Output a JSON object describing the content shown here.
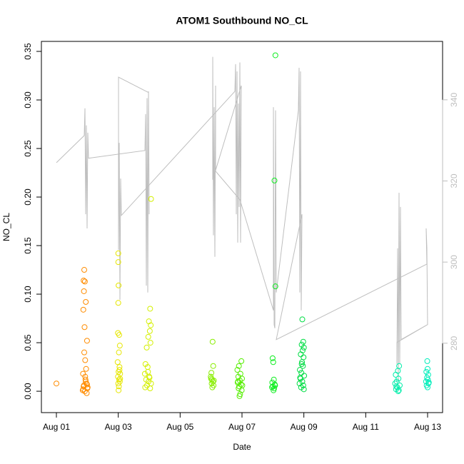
{
  "chart_data": {
    "type": "scatter",
    "title": "ATOM1 Southbound NO_CL",
    "xlabel": "Date",
    "ylabel": "NO_CL",
    "xlim": [
      0.515,
      13.485
    ],
    "xticks": [
      {
        "value": 1,
        "label": "Aug 01"
      },
      {
        "value": 3,
        "label": "Aug 03"
      },
      {
        "value": 5,
        "label": "Aug 05"
      },
      {
        "value": 7,
        "label": "Aug 07"
      },
      {
        "value": 9,
        "label": "Aug 09"
      },
      {
        "value": 11,
        "label": "Aug 11"
      },
      {
        "value": 13,
        "label": "Aug 13"
      }
    ],
    "ylim": [
      -0.022,
      0.3603
    ],
    "yticks": [
      {
        "value": 0,
        "label": "0.00"
      },
      {
        "value": 0.05,
        "label": "0.05"
      },
      {
        "value": 0.1,
        "label": "0.10"
      },
      {
        "value": 0.15,
        "label": "0.15"
      },
      {
        "value": 0.2,
        "label": "0.20"
      },
      {
        "value": 0.25,
        "label": "0.25"
      },
      {
        "value": 0.3,
        "label": "0.30"
      },
      {
        "value": 0.35,
        "label": "0.35"
      }
    ],
    "y2lim": [
      262.9,
      354.4
    ],
    "y2ticks": [
      280,
      300,
      320,
      340
    ],
    "y2_color": "#bebebe",
    "series": [
      {
        "color": "#ff8c00",
        "x": [
          1.0,
          1.9,
          1.88,
          1.92,
          1.89,
          1.95,
          1.87,
          1.91,
          1.99,
          1.9,
          1.93,
          1.96,
          1.86,
          1.94,
          1.97,
          1.88,
          2.0,
          1.85,
          1.98,
          1.92,
          2.01,
          1.89,
          1.95,
          1.93,
          1.87,
          1.99
        ],
        "values": [
          0.008,
          0.125,
          0.114,
          0.113,
          0.103,
          0.092,
          0.084,
          0.066,
          0.052,
          0.04,
          0.032,
          0.023,
          0.018,
          0.012,
          0.008,
          0.005,
          0.003,
          0.001,
          -0.002,
          0.0,
          0.004,
          0.006,
          0.01,
          0.015,
          0.002,
          0.007
        ]
      },
      {
        "color": "#e6e600",
        "x": [
          3.0,
          3.0,
          3.01,
          3.0,
          2.99,
          3.03,
          3.05,
          3.02,
          2.98,
          3.04,
          3.01,
          3.06,
          2.99,
          3.03,
          3.05,
          3.0,
          3.02,
          3.01,
          3.04,
          3.06
        ],
        "values": [
          0.142,
          0.133,
          0.109,
          0.091,
          0.06,
          0.058,
          0.047,
          0.04,
          0.03,
          0.025,
          0.02,
          0.018,
          0.015,
          0.012,
          0.01,
          0.008,
          0.005,
          0.001,
          0.022,
          0.013
        ]
      },
      {
        "color": "#d4f000",
        "x": [
          4.06,
          4.03,
          3.99,
          4.05,
          4.02,
          3.97,
          4.04,
          3.92,
          3.88,
          3.95,
          3.86,
          4.0,
          3.9,
          3.98,
          4.06,
          3.93,
          3.87,
          4.03,
          3.96,
          4.01
        ],
        "values": [
          0.198,
          0.085,
          0.072,
          0.068,
          0.062,
          0.056,
          0.05,
          0.045,
          0.028,
          0.025,
          0.018,
          0.015,
          0.012,
          0.01,
          0.008,
          0.006,
          0.004,
          0.003,
          0.02,
          0.014
        ]
      },
      {
        "color": "#88ee00",
        "x": [
          6.05,
          6.07,
          6.01,
          5.99,
          6.03,
          6.06,
          6.02,
          6.08,
          6.04,
          6.0,
          6.09
        ],
        "values": [
          0.051,
          0.026,
          0.019,
          0.015,
          0.012,
          0.01,
          0.008,
          0.006,
          0.004,
          0.013,
          0.011
        ]
      },
      {
        "color": "#55ee00",
        "x": [
          6.98,
          6.9,
          6.85,
          6.95,
          6.88,
          7.0,
          6.93,
          6.86,
          6.97,
          6.91,
          6.89,
          6.99,
          6.94,
          6.92,
          6.87,
          7.01
        ],
        "values": [
          0.031,
          0.026,
          0.022,
          0.018,
          0.015,
          0.013,
          0.011,
          0.009,
          0.007,
          0.005,
          0.003,
          0.001,
          -0.003,
          -0.005,
          0.01,
          0.006
        ]
      },
      {
        "color": "#11ee22",
        "x": [
          8.08,
          8.05,
          8.08,
          7.99,
          8.01,
          8.03,
          7.98,
          8.06,
          8.0,
          8.04,
          8.02,
          7.97,
          8.07
        ],
        "values": [
          0.346,
          0.217,
          0.108,
          0.034,
          0.03,
          0.012,
          0.009,
          0.007,
          0.005,
          0.003,
          0.001,
          0.004,
          0.006
        ]
      },
      {
        "color": "#00dd44",
        "x": [
          8.95,
          8.98,
          8.93,
          9.0,
          8.96,
          8.9,
          8.99,
          8.94,
          8.97,
          8.87,
          8.92,
          9.01,
          8.89,
          8.95,
          8.86,
          8.98,
          8.91,
          9.0,
          8.93,
          8.88
        ],
        "values": [
          0.074,
          0.051,
          0.048,
          0.045,
          0.042,
          0.038,
          0.035,
          0.03,
          0.026,
          0.022,
          0.019,
          0.016,
          0.013,
          0.01,
          0.008,
          0.006,
          0.004,
          0.002,
          0.028,
          0.014
        ]
      },
      {
        "color": "#00eeaa",
        "x": [
          12.08,
          12.04,
          11.97,
          12.06,
          12.0,
          11.95,
          12.1,
          12.02,
          11.98,
          12.05,
          12.07,
          11.99
        ],
        "values": [
          0.026,
          0.021,
          0.017,
          0.013,
          0.01,
          0.008,
          0.006,
          0.004,
          0.002,
          0.0,
          0.001,
          0.005
        ]
      },
      {
        "color": "#00eebb",
        "x": [
          12.99,
          13.0,
          12.96,
          13.02,
          12.98,
          13.01,
          12.95,
          13.03,
          12.97,
          13.0,
          13.04
        ],
        "values": [
          0.031,
          0.023,
          0.02,
          0.017,
          0.014,
          0.012,
          0.01,
          0.008,
          0.006,
          0.004,
          0.009
        ]
      },
      {
        "type": "line",
        "axis": "y2",
        "color": "#bebebe",
        "x": [
          1.0,
          1.9,
          1.923,
          1.946,
          1.969,
          1.992,
          2.015,
          2.039,
          3.862,
          3.885,
          3.908,
          3.931,
          3.954,
          3.977,
          4.0,
          3.977,
          3.008,
          3.008,
          3.031,
          3.054,
          3.077,
          3.1,
          6.77,
          6.793,
          6.816,
          6.839,
          6.862,
          6.885,
          6.908,
          6.931,
          6.954,
          6.977,
          6.054,
          6.054,
          6.077,
          6.1,
          6.123,
          6.146,
          6.146,
          6.931,
          8.016,
          8.016,
          8.039,
          8.062,
          8.085,
          8.108,
          8.823,
          8.846,
          8.869,
          8.892,
          8.915,
          8.939,
          8.108,
          12.977,
          12.954,
          12.977,
          13.0,
          12.008,
          12.008,
          12.031,
          12.054,
          12.077,
          12.1,
          12.123,
          12.146,
          13.0
        ],
        "values": [
          324.5,
          331.2,
          337.9,
          311.8,
          333.7,
          308.3,
          331.9,
          325.6,
          327.5,
          336.5,
          294.2,
          340.4,
          292.5,
          342.1,
          311.8,
          341.8,
          345.6,
          303.0,
          329.4,
          290.7,
          320.6,
          311.5,
          342.1,
          348.8,
          311.8,
          347.0,
          304.8,
          339.1,
          313.6,
          349.2,
          304.8,
          343.5,
          320.3,
          350.6,
          306.6,
          338.2,
          301.3,
          343.5,
          322.4,
          315.4,
          288.1,
          338.2,
          284.6,
          283.7,
          337.4,
          292.5,
          337.4,
          347.9,
          292.5,
          347.0,
          288.1,
          311.8,
          280.9,
          299.5,
          308.3,
          303.4,
          284.6,
          280.2,
          274.9,
          303.4,
          270.5,
          317.1,
          274.9,
          313.6,
          280.9,
          284.6
        ]
      }
    ]
  }
}
